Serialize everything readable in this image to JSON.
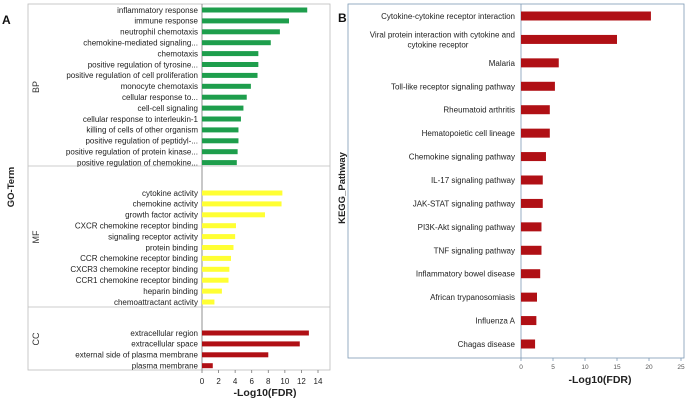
{
  "chart_data": [
    {
      "type": "bar",
      "orientation": "horizontal",
      "panel_label": "A",
      "xlabel": "-Log10(FDR)",
      "ylabel": "GO-Term",
      "xlim": [
        0,
        14
      ],
      "xticks": [
        "0",
        "2",
        "4",
        "6",
        "8",
        "10",
        "12",
        "14"
      ],
      "grid": false,
      "groups": [
        {
          "name": "BP",
          "color": "#1e9e4c",
          "categories": [
            "inflammatory response",
            "immune response",
            "neutrophil chemotaxis",
            "chemokine-mediated signaling...",
            "chemotaxis",
            "positive regulation of tyrosine...",
            "positive regulation of cell proliferation",
            "monocyte chemotaxis",
            "cellular response to...",
            "cell-cell signaling",
            "cellular response to interleukin-1",
            "killing of cells of other organism",
            "positive regulation of peptidyl-...",
            "positive regulation of protein kinase...",
            "positive regulation of chemokine..."
          ],
          "values": [
            12.7,
            10.5,
            9.4,
            8.3,
            6.8,
            6.8,
            6.7,
            5.9,
            5.4,
            5.0,
            4.7,
            4.4,
            4.4,
            4.3,
            4.2
          ]
        },
        {
          "name": "MF",
          "color": "#ffff33",
          "categories": [
            "cytokine activity",
            "chemokine activity",
            "growth factor activity",
            "CXCR chemokine receptor binding",
            "signaling receptor activity",
            "protein binding",
            "CCR chemokine receptor binding",
            "CXCR3 chemokine receptor binding",
            "CCR1 chemokine receptor binding",
            "heparin binding",
            "chemoattractant activity"
          ],
          "values": [
            9.7,
            9.6,
            7.6,
            4.1,
            4.0,
            3.8,
            3.5,
            3.3,
            3.2,
            2.4,
            1.5
          ]
        },
        {
          "name": "CC",
          "color": "#b01015",
          "categories": [
            "extracellular region",
            "extracellular space",
            "external side of plasma membrane",
            "plasma membrane"
          ],
          "values": [
            12.9,
            11.8,
            8.0,
            1.3
          ]
        }
      ]
    },
    {
      "type": "bar",
      "orientation": "horizontal",
      "panel_label": "B",
      "xlabel": "-Log10(FDR)",
      "ylabel": "KEGG_Pathway",
      "xlim": [
        0,
        25
      ],
      "xticks": [
        "0",
        "5",
        "10",
        "15",
        "20",
        "25"
      ],
      "grid": false,
      "color": "#b01015",
      "categories": [
        "Cytokine-cytokine receptor interaction",
        "Viral protein interaction with cytokine and cytokine receptor",
        "Malaria",
        "Toll-like receptor signaling pathway",
        "Rheumatoid arthritis",
        "Hematopoietic cell lineage",
        "Chemokine signaling pathway",
        "IL-17 signaling pathway",
        "JAK-STAT signaling pathway",
        "PI3K-Akt signaling pathway",
        "TNF signaling pathway",
        "Inflammatory bowel disease",
        "African trypanosomiasis",
        "Influenza A",
        "Chagas disease"
      ],
      "category_lines": [
        [
          "Cytokine-cytokine receptor interaction"
        ],
        [
          "Viral protein interaction with cytokine and",
          "cytokine receptor"
        ],
        [
          "Malaria"
        ],
        [
          "Toll-like receptor signaling pathway"
        ],
        [
          "Rheumatoid arthritis"
        ],
        [
          "Hematopoietic cell lineage"
        ],
        [
          "Chemokine signaling pathway"
        ],
        [
          "IL-17 signaling pathway"
        ],
        [
          "JAK-STAT signaling pathway"
        ],
        [
          "PI3K-Akt signaling pathway"
        ],
        [
          "TNF signaling pathway"
        ],
        [
          "Inflammatory bowel disease"
        ],
        [
          "African trypanosomiasis"
        ],
        [
          "Influenza A"
        ],
        [
          "Chagas disease"
        ]
      ],
      "values": [
        20.3,
        15.0,
        5.9,
        5.3,
        4.5,
        4.5,
        3.9,
        3.4,
        3.4,
        3.2,
        3.2,
        3.0,
        2.5,
        2.4,
        2.2
      ]
    }
  ]
}
